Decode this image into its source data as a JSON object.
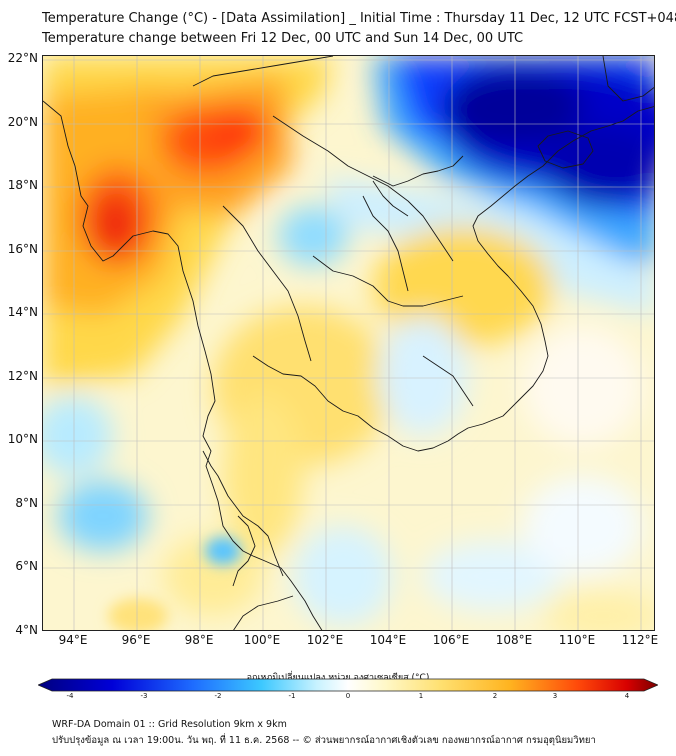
{
  "header": {
    "title_line1": "Temperature Change (°C) - [Data Assimilation] _ Initial Time : Thursday 11 Dec, 12 UTC FCST+048",
    "title_line2": "Temperature change between Fri 12 Dec, 00 UTC and Sun 14 Dec, 00 UTC"
  },
  "map": {
    "lat_labels": [
      "22°N",
      "20°N",
      "18°N",
      "16°N",
      "14°N",
      "12°N",
      "10°N",
      "8°N",
      "6°N",
      "4°N"
    ],
    "lon_labels": [
      "94°E",
      "96°E",
      "98°E",
      "100°E",
      "102°E",
      "104°E",
      "106°E",
      "108°E",
      "110°E",
      "112°E"
    ],
    "field_variable": "temperature change",
    "field_range_c": [
      -4,
      4
    ],
    "highlights": [
      {
        "region": "Myanmar coast near 17N 95E",
        "change_c": 3.2
      },
      {
        "region": "Northern Myanmar near 20N 98E",
        "change_c": 2.8
      },
      {
        "region": "Southern China / Hainan",
        "change_c": -3.8
      },
      {
        "region": "Central Thailand / Cambodia",
        "change_c": 1.0
      }
    ]
  },
  "colorbar": {
    "title": "อุณหภูมิเปลี่ยนแปลง หน่วย องศาเซลเซียส (°C)",
    "min": -4,
    "max": 4,
    "ticks": [
      "-4",
      "-3",
      "-2",
      "-1",
      "0",
      "1",
      "2",
      "3",
      "4"
    ],
    "colors": [
      "#00007f",
      "#0000c8",
      "#0a3cff",
      "#1e8cff",
      "#3cc8ff",
      "#a0ecff",
      "#ffffff",
      "#fff6b4",
      "#ffe070",
      "#ffc030",
      "#ff8c14",
      "#ff4a0a",
      "#e60000",
      "#8c0000"
    ]
  },
  "footer": {
    "line1": "WRF-DA Domain 01 :: Grid Resolution 9km x 9km",
    "line2": "ปรับปรุงข้อมูล ณ เวลา 19:00น. วัน พฤ. ที่ 11 ธ.ค. 2568 -- © ส่วนพยากรณ์อากาศเชิงตัวเลข กองพยากรณ์อากาศ กรมอุตุนิยมวิทยา"
  }
}
